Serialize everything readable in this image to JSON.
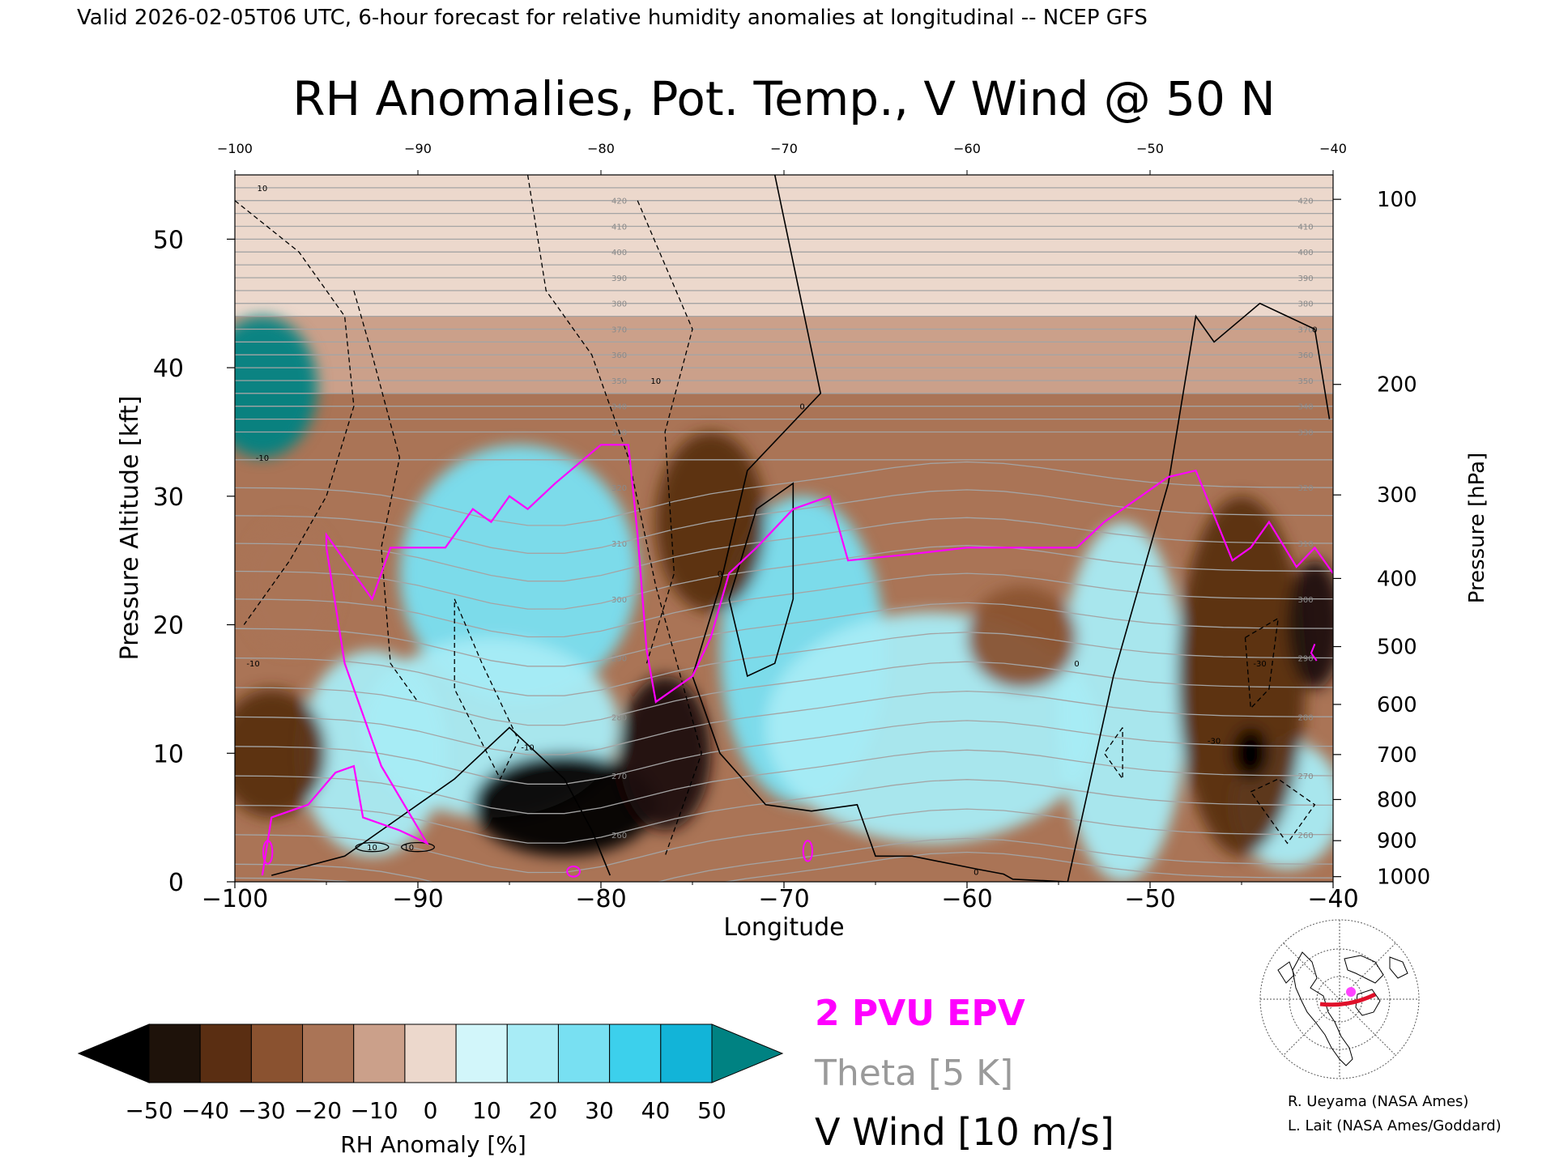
{
  "header": "Valid 2026-02-05T06 UTC, 6-hour forecast for relative humidity anomalies at longitudinal -- NCEP GFS",
  "chart_data": {
    "type": "heatmap",
    "title": "RH Anomalies, Pot. Temp., V Wind @ 50 N",
    "xlabel": "Longitude",
    "ylabel": "Pressure Altitude [kft]",
    "y2label": "Pressure [hPa]",
    "xlim": [
      -100,
      -40
    ],
    "ylim": [
      0,
      55
    ],
    "x_ticks": [
      -100,
      -90,
      -80,
      -70,
      -60,
      -50,
      -40
    ],
    "x_tick_labels": [
      "−100",
      "−90",
      "−80",
      "−70",
      "−60",
      "−50",
      "−40"
    ],
    "top_tick_labels": [
      "−100",
      "−90",
      "−80",
      "−70",
      "−60",
      "−50",
      "−40"
    ],
    "y_ticks": [
      0,
      10,
      20,
      30,
      40,
      50
    ],
    "pressure_ticks": [
      {
        "hpa": 100,
        "kft": 53.1
      },
      {
        "hpa": 200,
        "kft": 38.7
      },
      {
        "hpa": 300,
        "kft": 30.1
      },
      {
        "hpa": 400,
        "kft": 23.6
      },
      {
        "hpa": 500,
        "kft": 18.3
      },
      {
        "hpa": 600,
        "kft": 13.8
      },
      {
        "hpa": 700,
        "kft": 9.9
      },
      {
        "hpa": 800,
        "kft": 6.4
      },
      {
        "hpa": 900,
        "kft": 3.2
      },
      {
        "hpa": 1000,
        "kft": 0.4
      }
    ],
    "rh_anomaly_field": {
      "background_bands": [
        {
          "from_kft": 55,
          "to_kft": 44,
          "anomaly": 2
        },
        {
          "from_kft": 44,
          "to_kft": 38,
          "anomaly": -8
        },
        {
          "from_kft": 38,
          "to_kft": 0,
          "anomaly": -15
        }
      ],
      "moist_regions": [
        {
          "lon": -98.5,
          "kft": 38.5,
          "rx": 3.0,
          "ry": 5.5,
          "anomaly": 50
        },
        {
          "lon": -84.5,
          "kft": 24,
          "rx": 6.5,
          "ry": 10,
          "anomaly": 38
        },
        {
          "lon": -86,
          "kft": 12,
          "rx": 7,
          "ry": 7,
          "anomaly": 25
        },
        {
          "lon": -92.5,
          "kft": 10,
          "rx": 4,
          "ry": 8,
          "anomaly": 20
        },
        {
          "lon": -69,
          "kft": 18,
          "rx": 4.5,
          "ry": 12,
          "anomaly": 38
        },
        {
          "lon": -62,
          "kft": 12,
          "rx": 9,
          "ry": 9,
          "anomaly": 22
        },
        {
          "lon": -51.5,
          "kft": 14,
          "rx": 3.5,
          "ry": 14,
          "anomaly": 22
        },
        {
          "lon": -42.5,
          "kft": 6,
          "rx": 3,
          "ry": 5,
          "anomaly": 22
        }
      ],
      "dry_regions": [
        {
          "lon": -82,
          "kft": 6,
          "rx": 5,
          "ry": 4,
          "anomaly": -50
        },
        {
          "lon": -76.5,
          "kft": 10,
          "rx": 2.5,
          "ry": 6,
          "anomaly": -42
        },
        {
          "lon": -74,
          "kft": 28,
          "rx": 3,
          "ry": 7,
          "anomaly": -35
        },
        {
          "lon": -98,
          "kft": 10,
          "rx": 3,
          "ry": 5,
          "anomaly": -32
        },
        {
          "lon": -97,
          "kft": 23,
          "rx": 2.5,
          "ry": 5,
          "anomaly": -20
        },
        {
          "lon": -57,
          "kft": 19,
          "rx": 3,
          "ry": 4,
          "anomaly": -22
        },
        {
          "lon": -45,
          "kft": 16,
          "rx": 3.5,
          "ry": 14,
          "anomaly": -38
        },
        {
          "lon": -41,
          "kft": 20,
          "rx": 1.5,
          "ry": 5,
          "anomaly": -48
        },
        {
          "lon": -44.5,
          "kft": 10,
          "rx": 1,
          "ry": 2,
          "anomaly": -50
        }
      ]
    },
    "theta_contours_K": [
      250,
      255,
      260,
      265,
      270,
      275,
      280,
      285,
      290,
      295,
      300,
      305,
      310,
      315,
      320,
      325,
      330,
      335,
      340,
      345,
      350,
      355,
      360,
      365,
      370,
      375,
      380,
      385,
      390,
      395,
      400,
      405,
      410,
      415,
      420,
      425
    ],
    "theta_labeled": [
      "260",
      "270",
      "280",
      "290",
      "300",
      "310",
      "320",
      "330",
      "340",
      "350",
      "360",
      "370",
      "380",
      "390",
      "400",
      "410",
      "420"
    ],
    "theta_label_lons": {
      "left": -79,
      "right": -41.5
    },
    "epv_2pvu_line": [
      [
        -98.5,
        0.5
      ],
      [
        -98,
        5
      ],
      [
        -96,
        6
      ],
      [
        -94.5,
        8.5
      ],
      [
        -93.5,
        9
      ],
      [
        -93,
        5
      ],
      [
        -91,
        4
      ],
      [
        -89.5,
        3
      ],
      [
        -92,
        9
      ],
      [
        -94,
        17
      ],
      [
        -95,
        26
      ],
      [
        -95,
        27
      ],
      [
        -92.5,
        22
      ],
      [
        -91.5,
        26
      ],
      [
        -88.5,
        26
      ],
      [
        -87,
        29
      ],
      [
        -86,
        28
      ],
      [
        -85,
        30
      ],
      [
        -84,
        29
      ],
      [
        -82.5,
        31
      ],
      [
        -80,
        34
      ],
      [
        -78.5,
        34
      ],
      [
        -78,
        27
      ],
      [
        -77.5,
        18
      ],
      [
        -77,
        14
      ],
      [
        -75,
        16
      ],
      [
        -74,
        19
      ],
      [
        -73,
        24
      ],
      [
        -71.5,
        26
      ],
      [
        -69.5,
        29
      ],
      [
        -67.5,
        30
      ],
      [
        -66.5,
        25
      ],
      [
        -63,
        25.5
      ],
      [
        -60,
        26
      ],
      [
        -54,
        26
      ],
      [
        -52.5,
        28
      ],
      [
        -50.5,
        30
      ],
      [
        -49,
        31.5
      ],
      [
        -47.5,
        32
      ],
      [
        -45.5,
        25
      ],
      [
        -44.5,
        26
      ],
      [
        -43.5,
        28
      ],
      [
        -42,
        24.5
      ],
      [
        -41,
        26
      ],
      [
        -40,
        24
      ]
    ],
    "epv_right_blip": [
      [
        -41,
        18.5
      ],
      [
        -41.2,
        17.8
      ],
      [
        -40.9,
        17.2
      ]
    ],
    "epv_small_loops": [
      {
        "lon": -98.2,
        "kft": 2.3,
        "rx": 0.25,
        "ry": 0.9
      },
      {
        "lon": -68.7,
        "kft": 2.4,
        "rx": 0.25,
        "ry": 0.8
      },
      {
        "lon": -81.5,
        "kft": 0.8,
        "rx": 0.35,
        "ry": 0.4
      }
    ],
    "v_wind_zero_lines": [
      [
        [
          -70.5,
          55
        ],
        [
          -68,
          38
        ],
        [
          -72,
          32
        ],
        [
          -73.5,
          23
        ],
        [
          -75,
          16
        ],
        [
          -73.5,
          10
        ],
        [
          -71,
          6
        ],
        [
          -68.5,
          5.5
        ],
        [
          -66,
          6
        ],
        [
          -65,
          2
        ],
        [
          -63,
          2
        ],
        [
          -59.5,
          1
        ],
        [
          -58,
          0.6
        ],
        [
          -57.5,
          0.2
        ],
        [
          -54.5,
          0
        ]
      ],
      [
        [
          -98,
          0.5
        ],
        [
          -94,
          2
        ],
        [
          -91,
          5
        ],
        [
          -88,
          8
        ],
        [
          -85,
          12
        ],
        [
          -82,
          8
        ],
        [
          -80.5,
          4
        ],
        [
          -79.5,
          0.5
        ]
      ],
      [
        [
          -73,
          22
        ],
        [
          -71.5,
          29
        ],
        [
          -69.5,
          31
        ],
        [
          -69.5,
          25
        ],
        [
          -69.5,
          22
        ],
        [
          -70.5,
          17
        ],
        [
          -72,
          16
        ],
        [
          -73,
          22
        ]
      ],
      [
        [
          -54.5,
          0
        ],
        [
          -52,
          16
        ],
        [
          -49,
          31
        ],
        [
          -47.5,
          44
        ],
        [
          -46.5,
          42
        ],
        [
          -44,
          45
        ],
        [
          -42.5,
          44
        ],
        [
          -41,
          43
        ],
        [
          -40.2,
          36
        ]
      ]
    ],
    "v_wind_dashed_lines": [
      [
        [
          -100,
          53
        ],
        [
          -96.5,
          49
        ],
        [
          -94,
          44
        ],
        [
          -93.5,
          37
        ],
        [
          -95,
          30
        ],
        [
          -97,
          25
        ],
        [
          -99.5,
          20
        ]
      ],
      [
        [
          -93.5,
          46
        ],
        [
          -92.5,
          41
        ],
        [
          -91,
          33
        ],
        [
          -92,
          26
        ],
        [
          -91.5,
          17
        ],
        [
          -90,
          14
        ]
      ],
      [
        [
          -84,
          55
        ],
        [
          -83,
          46
        ],
        [
          -80.5,
          41
        ],
        [
          -78.5,
          33
        ],
        [
          -77,
          23
        ],
        [
          -74.5,
          10
        ],
        [
          -76.5,
          2
        ]
      ],
      [
        [
          -78,
          53
        ],
        [
          -75,
          43
        ],
        [
          -76.5,
          35
        ],
        [
          -76,
          24
        ],
        [
          -77.5,
          17
        ]
      ],
      [
        [
          -88,
          22
        ],
        [
          -86.5,
          17
        ],
        [
          -84.5,
          11
        ],
        [
          -85.5,
          8
        ],
        [
          -88,
          15
        ],
        [
          -88,
          22
        ]
      ],
      [
        [
          -44.8,
          19
        ],
        [
          -43,
          20.5
        ],
        [
          -43.5,
          15
        ],
        [
          -44.5,
          13.5
        ],
        [
          -44.8,
          19
        ]
      ],
      [
        [
          -51.5,
          12
        ],
        [
          -52.5,
          10
        ],
        [
          -51.5,
          8
        ],
        [
          -51.5,
          12
        ]
      ],
      [
        [
          -44.5,
          7
        ],
        [
          -43,
          8
        ],
        [
          -41,
          6
        ],
        [
          -42.5,
          3
        ],
        [
          -44.5,
          7
        ]
      ]
    ],
    "v_wind_contour_labels": [
      "0",
      "0",
      "0",
      "0",
      "0",
      "10",
      "10",
      "10",
      "10",
      "-10",
      "-10",
      "-10",
      "-30",
      "-30"
    ],
    "colorbar": {
      "label": "RH Anomaly [%]",
      "tick_labels": [
        "−50",
        "−40",
        "−30",
        "−20",
        "−10",
        "0",
        "10",
        "20",
        "30",
        "40",
        "50"
      ],
      "colors": [
        "#1e120a",
        "#5a2e12",
        "#8a5230",
        "#aa7456",
        "#cba08a",
        "#ecd8cc",
        "#d2f6fa",
        "#a8ecf6",
        "#78e0f2",
        "#3cd0ec",
        "#12b4d8"
      ],
      "under_color": "#000000",
      "over_color": "#008282"
    },
    "legend": [
      {
        "text": "2 PVU EPV",
        "color": "#ff00ff"
      },
      {
        "text": "Theta [5 K]",
        "color": "#9a9a9a"
      },
      {
        "text": "V Wind [10 m/s]",
        "color": "#000000"
      }
    ]
  },
  "map_inset": {
    "icon": "polar-stereographic-globe-icon",
    "path_color": "#e0102a",
    "marker_color": "#ff44ff"
  },
  "credits": [
    "R. Ueyama (NASA Ames)",
    "L. Lait (NASA Ames/Goddard)"
  ]
}
